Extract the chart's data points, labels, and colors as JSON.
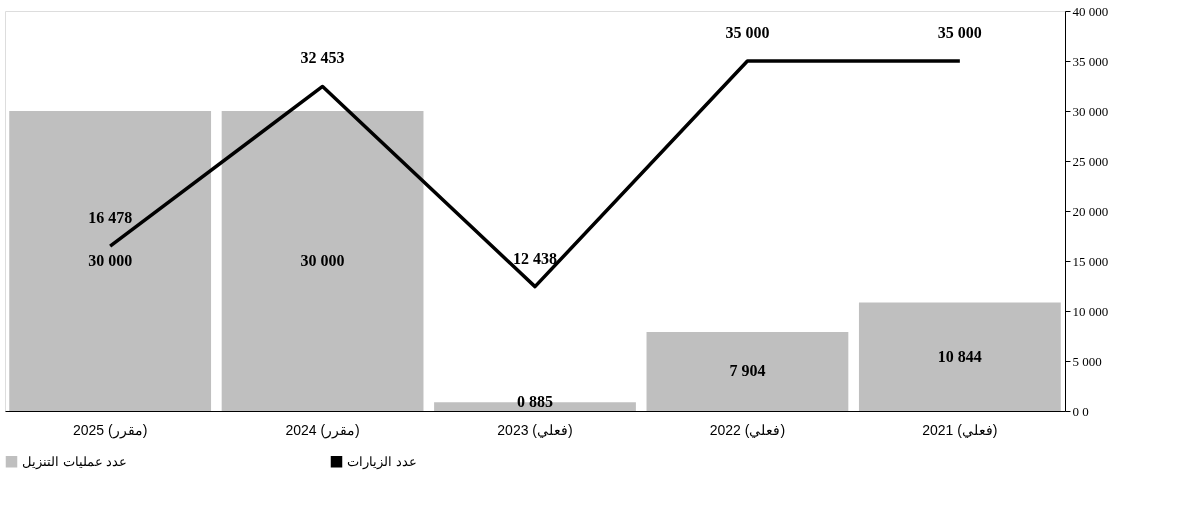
{
  "chart_data": {
    "type": "bar",
    "categories": [
      "2025 (مقرر)",
      "2024 (مقرر)",
      "2023 (فعلي)",
      "2022 (فعلي)",
      "2021 (فعلي)"
    ],
    "series": [
      {
        "name": "عدد عمليات التنزيل",
        "color": "#bfbfbf",
        "values": [
          30000,
          30000,
          885,
          7904,
          10844
        ],
        "value_labels": [
          "30 000",
          "30 000",
          "0 885",
          "7 904",
          "10 844"
        ]
      },
      {
        "name": "عدد الزيارات",
        "type": "line",
        "color": "#000000",
        "values": [
          16478,
          32453,
          12438,
          35000,
          35000
        ],
        "value_labels": [
          "16 478",
          "32 453",
          "12 438",
          "35 000",
          "35 000"
        ]
      }
    ],
    "ylim": [
      0,
      40000
    ],
    "yticks": [
      {
        "value": 0,
        "label": "0 0"
      },
      {
        "value": 5000,
        "label": "5 000"
      },
      {
        "value": 10000,
        "label": "10 000"
      },
      {
        "value": 15000,
        "label": "15 000"
      },
      {
        "value": 20000,
        "label": "20 000"
      },
      {
        "value": 25000,
        "label": "25 000"
      },
      {
        "value": 30000,
        "label": "30 000"
      },
      {
        "value": 35000,
        "label": "35 000"
      },
      {
        "value": 40000,
        "label": "40 000"
      }
    ],
    "grid": false,
    "legend": "bottom",
    "marker": "none",
    "line_style": "solid"
  }
}
